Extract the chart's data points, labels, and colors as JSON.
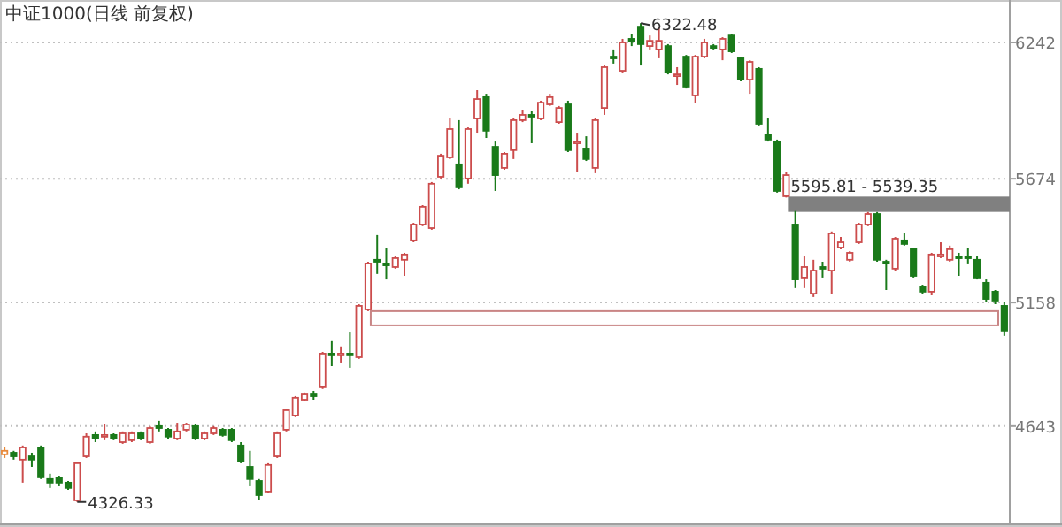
{
  "chart_data": {
    "type": "candlestick",
    "title": "中证1000(日线 前复权)",
    "categories": [
      null,
      null,
      null,
      null,
      null,
      null,
      null,
      null,
      null,
      null,
      null,
      null,
      null,
      null,
      null,
      null,
      null,
      null,
      null,
      null,
      null,
      null,
      null,
      null,
      null,
      null,
      null,
      null,
      null,
      null,
      null,
      null,
      null,
      null,
      null,
      null,
      null,
      null,
      null,
      null,
      null,
      null,
      null,
      null,
      null,
      null,
      null,
      null,
      null,
      null,
      null,
      null,
      null,
      null,
      null,
      null,
      null,
      null,
      null,
      null,
      null,
      null,
      null,
      null,
      null,
      null,
      null,
      null,
      null,
      null,
      null,
      null,
      null,
      null,
      null,
      null,
      null,
      null,
      null,
      null,
      null,
      null,
      null,
      null,
      null,
      null,
      null,
      null,
      null,
      null,
      null,
      null,
      null,
      null,
      null,
      null,
      null,
      null,
      null,
      null,
      null,
      null,
      null,
      null,
      null,
      null,
      null,
      null,
      null,
      null,
      null
    ],
    "ohlc": [
      [
        4525,
        4554,
        4510,
        4540
      ],
      [
        4532,
        4540,
        4503,
        4517
      ],
      [
        4503,
        4562,
        4407,
        4554
      ],
      [
        4517,
        4532,
        4473,
        4503
      ],
      [
        4554,
        4562,
        4422,
        4429
      ],
      [
        4422,
        4444,
        4385,
        4407
      ],
      [
        4429,
        4436,
        4392,
        4407
      ],
      [
        4407,
        4414,
        4377,
        4385
      ],
      [
        4333,
        4495,
        4326.33,
        4488
      ],
      [
        4517,
        4613,
        4510,
        4599
      ],
      [
        4606,
        4621,
        4576,
        4591
      ],
      [
        4599,
        4650,
        4584,
        4606
      ],
      [
        4606,
        4613,
        4584,
        4591
      ],
      [
        4576,
        4621,
        4569,
        4613
      ],
      [
        4584,
        4621,
        4576,
        4613
      ],
      [
        4613,
        4621,
        4584,
        4591
      ],
      [
        4576,
        4643,
        4569,
        4635
      ],
      [
        4643,
        4665,
        4621,
        4635
      ],
      [
        4628,
        4635,
        4591,
        4599
      ],
      [
        4591,
        4657,
        4584,
        4621
      ],
      [
        4628,
        4657,
        4621,
        4650
      ],
      [
        4643,
        4650,
        4584,
        4591
      ],
      [
        4591,
        4621,
        4584,
        4613
      ],
      [
        4613,
        4643,
        4606,
        4635
      ],
      [
        4628,
        4635,
        4599,
        4606
      ],
      [
        4628,
        4635,
        4576,
        4584
      ],
      [
        4562,
        4576,
        4488,
        4495
      ],
      [
        4473,
        4540,
        4392,
        4422
      ],
      [
        4414,
        4422,
        4333,
        4355
      ],
      [
        4370,
        4488,
        4363,
        4481
      ],
      [
        4517,
        4621,
        4510,
        4613
      ],
      [
        4628,
        4716,
        4621,
        4709
      ],
      [
        4687,
        4768,
        4680,
        4761
      ],
      [
        4753,
        4783,
        4746,
        4775
      ],
      [
        4775,
        4790,
        4753,
        4768
      ],
      [
        4805,
        4952,
        4798,
        4945
      ],
      [
        4945,
        4997,
        4893,
        4938
      ],
      [
        4938,
        4975,
        4908,
        4945
      ],
      [
        4945,
        5033,
        4886,
        4938
      ],
      [
        4930,
        5151,
        4923,
        5144
      ],
      [
        5129,
        5328,
        5122,
        5321
      ],
      [
        5336,
        5439,
        5277,
        5328
      ],
      [
        5321,
        5387,
        5254,
        5313
      ],
      [
        5306,
        5350,
        5299,
        5343
      ],
      [
        5336,
        5365,
        5269,
        5358
      ],
      [
        5417,
        5490,
        5409,
        5483
      ],
      [
        5483,
        5564,
        5476,
        5557
      ],
      [
        5468,
        5660,
        5461,
        5653
      ],
      [
        5682,
        5778,
        5675,
        5770
      ],
      [
        5763,
        5925,
        5756,
        5881
      ],
      [
        5734,
        5918,
        5630,
        5638
      ],
      [
        5675,
        5888,
        5653,
        5881
      ],
      [
        5925,
        6043,
        5866,
        6006
      ],
      [
        6014,
        6028,
        5844,
        5874
      ],
      [
        5807,
        5829,
        5623,
        5689
      ],
      [
        5719,
        5785,
        5711,
        5778
      ],
      [
        5793,
        5925,
        5756,
        5918
      ],
      [
        5918,
        5962,
        5910,
        5940
      ],
      [
        5940,
        5955,
        5822,
        5933
      ],
      [
        5925,
        5999,
        5918,
        5991
      ],
      [
        5984,
        6028,
        5977,
        6014
      ],
      [
        5910,
        5977,
        5903,
        5969
      ],
      [
        5984,
        5999,
        5785,
        5793
      ],
      [
        5822,
        5866,
        5704,
        5829
      ],
      [
        5800,
        5851,
        5748,
        5756
      ],
      [
        5719,
        5925,
        5697,
        5918
      ],
      [
        5969,
        6146,
        5940,
        6139
      ],
      [
        6183,
        6213,
        6154,
        6176
      ],
      [
        6124,
        6257,
        6117,
        6242
      ],
      [
        6257,
        6279,
        6227,
        6249
      ],
      [
        6308,
        6322.48,
        6146,
        6235
      ],
      [
        6227,
        6271,
        6213,
        6249
      ],
      [
        6213,
        6308,
        6176,
        6249
      ],
      [
        6227,
        6235,
        6109,
        6117
      ],
      [
        6102,
        6139,
        6065,
        6109
      ],
      [
        6183,
        6190,
        6050,
        6058
      ],
      [
        6021,
        6190,
        5991,
        6183
      ],
      [
        6183,
        6257,
        6176,
        6242
      ],
      [
        6227,
        6235,
        6213,
        6220
      ],
      [
        6213,
        6264,
        6168,
        6257
      ],
      [
        6271,
        6279,
        6198,
        6205
      ],
      [
        6176,
        6183,
        6080,
        6087
      ],
      [
        6087,
        6168,
        6028,
        6161
      ],
      [
        6132,
        6139,
        5896,
        5903
      ],
      [
        5859,
        5925,
        5829,
        5837
      ],
      [
        5829,
        5837,
        5616,
        5623
      ],
      [
        5601,
        5704,
        5595.81,
        5689
      ],
      [
        5483,
        5539.35,
        5218,
        5254
      ],
      [
        5262,
        5350,
        5218,
        5306
      ],
      [
        5195,
        5336,
        5181,
        5291
      ],
      [
        5306,
        5328,
        5262,
        5299
      ],
      [
        5291,
        5454,
        5195,
        5446
      ],
      [
        5387,
        5431,
        5380,
        5409
      ],
      [
        5336,
        5372,
        5328,
        5365
      ],
      [
        5409,
        5490,
        5402,
        5483
      ],
      [
        5483,
        5535,
        5476,
        5527
      ],
      [
        5527,
        5535,
        5328,
        5336
      ],
      [
        5328,
        5336,
        5210,
        5321
      ],
      [
        5299,
        5431,
        5291,
        5424
      ],
      [
        5417,
        5446,
        5395,
        5402
      ],
      [
        5380,
        5387,
        5262,
        5269
      ],
      [
        5225,
        5232,
        5195,
        5203
      ],
      [
        5203,
        5365,
        5188,
        5358
      ],
      [
        5350,
        5409,
        5343,
        5358
      ],
      [
        5336,
        5395,
        5328,
        5380
      ],
      [
        5350,
        5365,
        5269,
        5343
      ],
      [
        5350,
        5387,
        5321,
        5343
      ],
      [
        5336,
        5350,
        5254,
        5262
      ],
      [
        5240,
        5254,
        5159,
        5173
      ],
      [
        5203,
        5210,
        5151,
        5166
      ],
      [
        5144,
        5159,
        5019,
        5041
      ]
    ],
    "colors": [
      "#e8893a",
      "#1a7a1a",
      "#cc4c4c",
      "#1a7a1a",
      "#1a7a1a",
      "#1a7a1a",
      "#1a7a1a",
      "#1a7a1a",
      "#cc4c4c",
      "#cc4c4c",
      "#1a7a1a",
      "#cc4c4c",
      "#1a7a1a",
      "#cc4c4c",
      "#cc4c4c",
      "#1a7a1a",
      "#cc4c4c",
      "#1a7a1a",
      "#1a7a1a",
      "#cc4c4c",
      "#cc4c4c",
      "#1a7a1a",
      "#cc4c4c",
      "#cc4c4c",
      "#1a7a1a",
      "#1a7a1a",
      "#1a7a1a",
      "#1a7a1a",
      "#1a7a1a",
      "#cc4c4c",
      "#cc4c4c",
      "#cc4c4c",
      "#cc4c4c",
      "#cc4c4c",
      "#1a7a1a",
      "#cc4c4c",
      "#1a7a1a",
      "#cc4c4c",
      "#1a7a1a",
      "#cc4c4c",
      "#cc4c4c",
      "#1a7a1a",
      "#1a7a1a",
      "#cc4c4c",
      "#cc4c4c",
      "#cc4c4c",
      "#cc4c4c",
      "#cc4c4c",
      "#cc4c4c",
      "#cc4c4c",
      "#1a7a1a",
      "#cc4c4c",
      "#cc4c4c",
      "#1a7a1a",
      "#1a7a1a",
      "#cc4c4c",
      "#cc4c4c",
      "#cc4c4c",
      "#1a7a1a",
      "#cc4c4c",
      "#cc4c4c",
      "#cc4c4c",
      "#1a7a1a",
      "#cc4c4c",
      "#1a7a1a",
      "#cc4c4c",
      "#cc4c4c",
      "#1a7a1a",
      "#cc4c4c",
      "#1a7a1a",
      "#1a7a1a",
      "#cc4c4c",
      "#cc4c4c",
      "#1a7a1a",
      "#cc4c4c",
      "#1a7a1a",
      "#cc4c4c",
      "#cc4c4c",
      "#1a7a1a",
      "#cc4c4c",
      "#1a7a1a",
      "#1a7a1a",
      "#cc4c4c",
      "#1a7a1a",
      "#1a7a1a",
      "#1a7a1a",
      "#cc4c4c",
      "#1a7a1a",
      "#cc4c4c",
      "#cc4c4c",
      "#1a7a1a",
      "#cc4c4c",
      "#cc4c4c",
      "#cc4c4c",
      "#cc4c4c",
      "#cc4c4c",
      "#1a7a1a",
      "#1a7a1a",
      "#cc4c4c",
      "#1a7a1a",
      "#1a7a1a",
      "#1a7a1a",
      "#cc4c4c",
      "#cc4c4c",
      "#cc4c4c",
      "#1a7a1a",
      "#1a7a1a",
      "#1a7a1a",
      "#1a7a1a",
      "#1a7a1a",
      "#1a7a1a"
    ],
    "ylim": [
      4237,
      6419
    ],
    "yticks": [
      4643,
      5158,
      5674,
      6242
    ],
    "grid": "y",
    "bands": [
      {
        "axis": "y",
        "from": 5539.35,
        "to": 5595.81,
        "label": "5595.81 - 5539.35",
        "color": "#808080"
      },
      {
        "axis": "y",
        "from": 5063,
        "to": 5122,
        "color": "#c98585"
      }
    ],
    "annotations": [
      "6322.48",
      "4326.33"
    ]
  }
}
